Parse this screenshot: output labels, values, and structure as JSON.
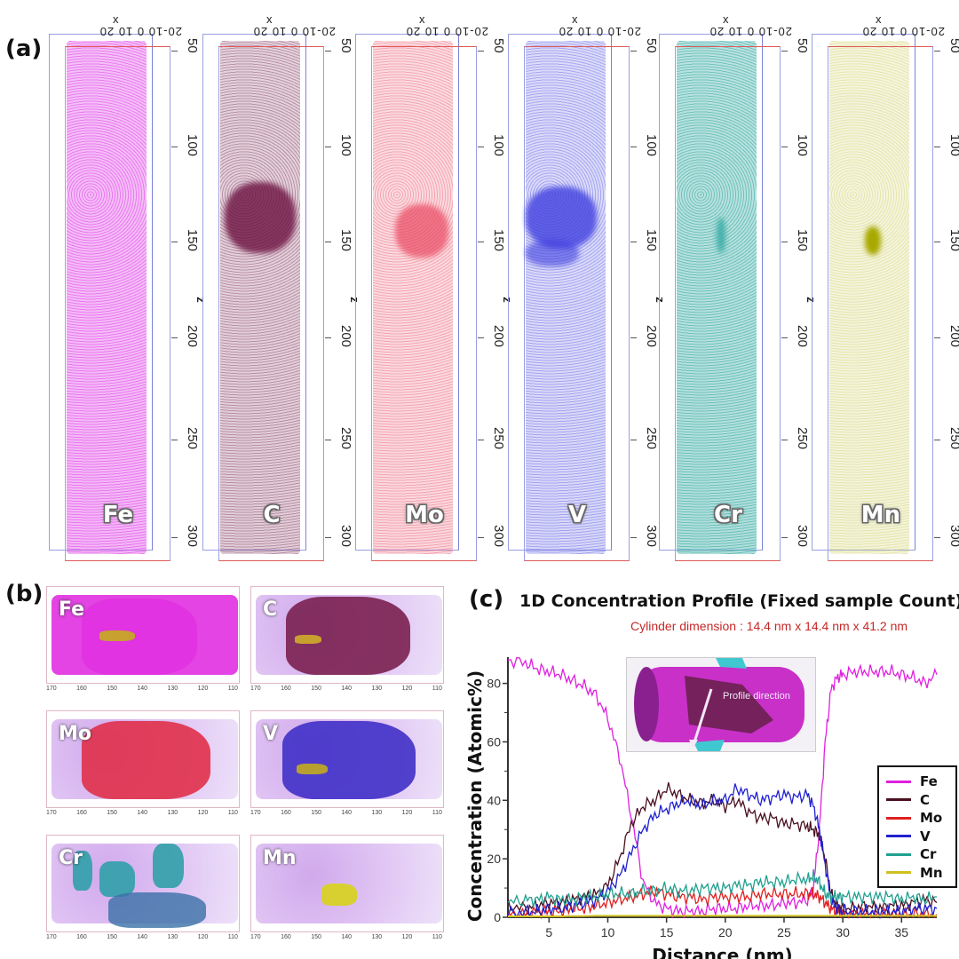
{
  "panel_a": {
    "label": "(a)",
    "x_axis_label": "x",
    "x_ticks": "20-10 0 10 20",
    "z_axis_label": "z",
    "z_ticks": [
      "50",
      "100",
      "150",
      "200",
      "250",
      "300"
    ],
    "columns": [
      {
        "element": "Fe",
        "color": "#e040e8"
      },
      {
        "element": "C",
        "color": "#6b1040"
      },
      {
        "element": "Mo",
        "color": "#e8405a"
      },
      {
        "element": "V",
        "color": "#4040e0"
      },
      {
        "element": "Cr",
        "color": "#30a8a0"
      },
      {
        "element": "Mn",
        "color": "#c8c850"
      }
    ]
  },
  "panel_b": {
    "label": "(b)",
    "z_ticks": [
      "170",
      "160",
      "150",
      "140",
      "130",
      "120",
      "110"
    ],
    "cells": [
      {
        "element": "Fe",
        "color": "#e030e0"
      },
      {
        "element": "C",
        "color": "#7a2050"
      },
      {
        "element": "Mo",
        "color": "#e0304a"
      },
      {
        "element": "V",
        "color": "#4030c8"
      },
      {
        "element": "Cr",
        "color": "#30a0a8"
      },
      {
        "element": "Mn",
        "color": "#d8d030"
      }
    ]
  },
  "panel_c": {
    "label": "(c)",
    "inset_annotation": "Profile direction"
  },
  "chart_data": {
    "type": "line",
    "title": "1D Concentration Profile (Fixed sample Count)",
    "subtitle": "Cylinder dimension : 14.4 nm x 14.4 nm x 41.2 nm",
    "xlabel": "Distance (nm)",
    "ylabel": "Concentration (Atomic%)",
    "xlim": [
      1.5,
      38
    ],
    "ylim": [
      0,
      89
    ],
    "x_ticks": [
      5,
      10,
      15,
      20,
      25,
      30,
      35
    ],
    "y_ticks": [
      0,
      20,
      40,
      60,
      80
    ],
    "legend_position": "right",
    "x": [
      1.5,
      3,
      4,
      5,
      6,
      7,
      8,
      9,
      10,
      11,
      12,
      13,
      14,
      15,
      16,
      17,
      18,
      19,
      20,
      21,
      22,
      23,
      24,
      25,
      26,
      27,
      27.5,
      28,
      28.5,
      29,
      29.5,
      30,
      31,
      32,
      33,
      34,
      35,
      36,
      37,
      38
    ],
    "series": [
      {
        "name": "Fe",
        "color": "#e020e0",
        "values": [
          88,
          87,
          85,
          84,
          83,
          81,
          79,
          76,
          68,
          55,
          35,
          12,
          5,
          3,
          2,
          2,
          2,
          3,
          3,
          3,
          4,
          4,
          4,
          5,
          5,
          6,
          10,
          30,
          60,
          78,
          82,
          83,
          84,
          84,
          84,
          84,
          83,
          82,
          80,
          83
        ]
      },
      {
        "name": "C",
        "color": "#4a1020",
        "values": [
          4,
          3,
          4,
          5,
          5,
          6,
          7,
          8,
          11,
          20,
          32,
          38,
          40,
          44,
          42,
          40,
          39,
          40,
          38,
          40,
          36,
          34,
          34,
          32,
          32,
          31,
          30,
          28,
          20,
          8,
          4,
          3,
          3,
          4,
          3,
          4,
          4,
          5,
          6,
          5
        ]
      },
      {
        "name": "Mo",
        "color": "#e02020",
        "values": [
          1,
          1,
          2,
          2,
          2,
          3,
          3,
          4,
          5,
          6,
          7,
          8,
          9,
          8,
          7,
          7,
          6,
          7,
          7,
          7,
          7,
          8,
          8,
          8,
          8,
          8,
          8,
          7,
          5,
          3,
          2,
          1,
          1,
          1,
          1,
          1,
          1,
          1,
          1,
          1
        ]
      },
      {
        "name": "V",
        "color": "#2020d0",
        "values": [
          1,
          2,
          2,
          3,
          3,
          4,
          5,
          6,
          9,
          14,
          22,
          30,
          35,
          37,
          39,
          40,
          38,
          40,
          40,
          44,
          42,
          40,
          41,
          42,
          41,
          42,
          38,
          30,
          18,
          6,
          3,
          2,
          2,
          2,
          2,
          2,
          2,
          3,
          3,
          3
        ]
      },
      {
        "name": "Cr",
        "color": "#20a090",
        "values": [
          5,
          6,
          6,
          7,
          6,
          6,
          7,
          7,
          8,
          8,
          8,
          9,
          9,
          10,
          9,
          9,
          10,
          10,
          10,
          11,
          11,
          12,
          12,
          12,
          13,
          13,
          14,
          12,
          8,
          7,
          7,
          7,
          7,
          7,
          7,
          7,
          6,
          7,
          6,
          7
        ]
      },
      {
        "name": "Mn",
        "color": "#d0c020",
        "values": [
          0.3,
          0.3,
          0.3,
          0.3,
          0.3,
          0.4,
          0.4,
          0.5,
          0.5,
          0.5,
          0.5,
          0.5,
          0.5,
          0.5,
          0.5,
          0.5,
          0.5,
          0.5,
          0.5,
          0.5,
          0.5,
          0.5,
          0.5,
          0.5,
          0.5,
          0.5,
          0.5,
          0.5,
          0.5,
          0.5,
          0.5,
          0.5,
          0.5,
          0.5,
          0.5,
          0.5,
          0.5,
          0.5,
          0.5,
          0.5
        ]
      }
    ]
  }
}
